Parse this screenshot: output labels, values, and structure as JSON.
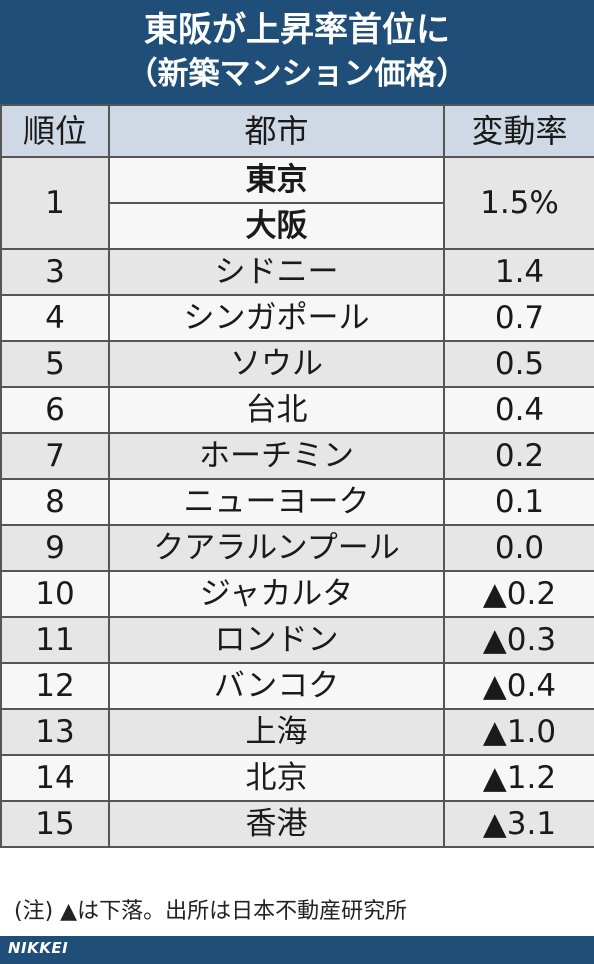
{
  "title": {
    "line1": "東阪が上昇率首位に",
    "line2": "（新築マンション価格）"
  },
  "table": {
    "headers": [
      "順位",
      "都市",
      "変動率"
    ],
    "top": {
      "rank": "1",
      "cities": [
        "東京",
        "大阪"
      ],
      "value": "1.5%"
    },
    "rows": [
      {
        "rank": "3",
        "city": "シドニー",
        "value": "1.4"
      },
      {
        "rank": "4",
        "city": "シンガポール",
        "value": "0.7"
      },
      {
        "rank": "5",
        "city": "ソウル",
        "value": "0.5"
      },
      {
        "rank": "6",
        "city": "台北",
        "value": "0.4"
      },
      {
        "rank": "7",
        "city": "ホーチミン",
        "value": "0.2"
      },
      {
        "rank": "8",
        "city": "ニューヨーク",
        "value": "0.1"
      },
      {
        "rank": "9",
        "city": "クアラルンプール",
        "value": "0.0"
      },
      {
        "rank": "10",
        "city": "ジャカルタ",
        "value": "▲0.2"
      },
      {
        "rank": "11",
        "city": "ロンドン",
        "value": "▲0.3"
      },
      {
        "rank": "12",
        "city": "バンコク",
        "value": "▲0.4"
      },
      {
        "rank": "13",
        "city": "上海",
        "value": "▲1.0"
      },
      {
        "rank": "14",
        "city": "北京",
        "value": "▲1.2"
      },
      {
        "rank": "15",
        "city": "香港",
        "value": "▲3.1"
      }
    ]
  },
  "note": "(注) ▲は下落。出所は日本不動産研究所",
  "brand": "NIKKEI",
  "colors": {
    "header_bg": "#1f4e79",
    "header_row_bg": "#cfd9e6",
    "row_dark": "#e6e6e6",
    "row_light": "#f7f7f7"
  }
}
